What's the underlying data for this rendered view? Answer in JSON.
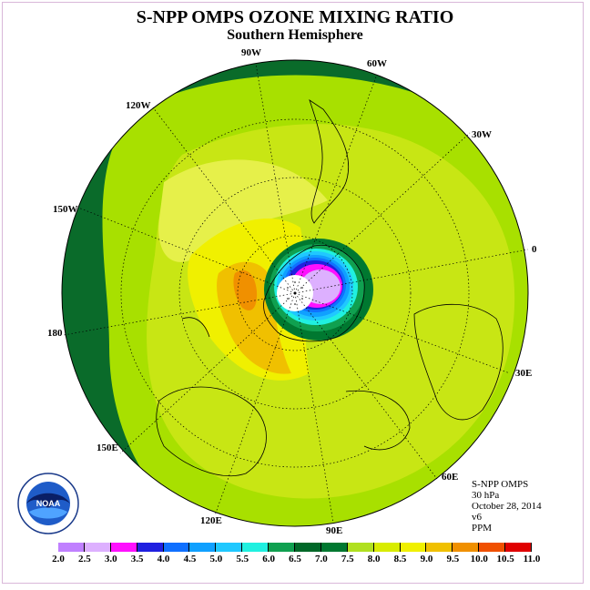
{
  "title": "S-NPP OMPS OZONE MIXING RATIO",
  "subtitle": "Southern Hemisphere",
  "longitude_labels": [
    "90W",
    "60W",
    "120W",
    "30W",
    "150W",
    "0",
    "180",
    "30E",
    "150E",
    "60E",
    "120E",
    "90E"
  ],
  "info": {
    "instrument": "S-NPP OMPS",
    "level": "30 hPa",
    "date": "October 28, 2014",
    "version": "v6",
    "units": "PPM"
  },
  "colorbar": {
    "ticks": [
      "2.0",
      "2.5",
      "3.0",
      "3.5",
      "4.0",
      "4.5",
      "5.0",
      "5.5",
      "6.0",
      "6.5",
      "7.0",
      "7.5",
      "8.0",
      "8.5",
      "9.0",
      "9.5",
      "10.0",
      "10.5",
      "11.0"
    ],
    "colors": [
      "#c080ff",
      "#ddb0ff",
      "#ff10ff",
      "#2020e0",
      "#1070ff",
      "#10a0ff",
      "#20c8ff",
      "#20f0e0",
      "#10a050",
      "#006828",
      "#007830",
      "#b0e020",
      "#d8ec00",
      "#f0f000",
      "#f0c000",
      "#f09000",
      "#f05000",
      "#e00000",
      "#805040"
    ]
  },
  "logo_text": "NOAA",
  "colors": {
    "ocean_edge": "#0a6b2a",
    "main": "#c8e614",
    "yellowgreen": "#a8e000",
    "yellow": "#f0f000",
    "orange": "#f0c000"
  }
}
